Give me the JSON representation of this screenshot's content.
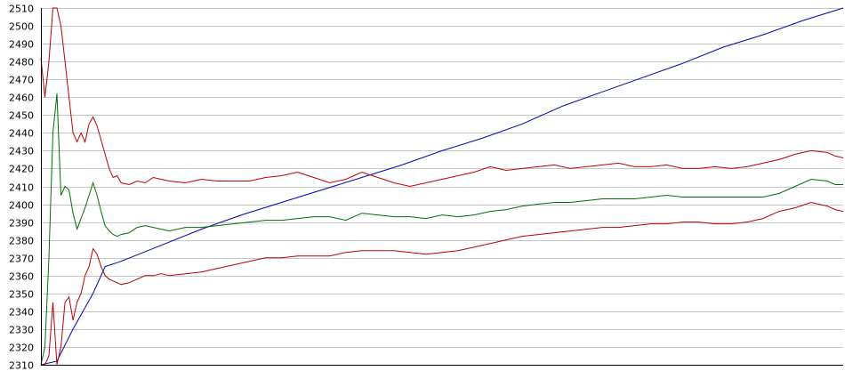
{
  "chart_data": {
    "type": "line",
    "title": "",
    "xlabel": "",
    "ylabel": "",
    "ylim": [
      2310,
      2510
    ],
    "xlim": [
      0,
      100
    ],
    "yticks": [
      "2310",
      "2320",
      "2330",
      "2340",
      "2350",
      "2360",
      "2370",
      "2380",
      "2390",
      "2400",
      "2410",
      "2420",
      "2430",
      "2440",
      "2450",
      "2460",
      "2470",
      "2480",
      "2490",
      "2500",
      "2510"
    ],
    "grid": true,
    "legend": "none",
    "series": [
      {
        "color": "#0000c0",
        "x": [
          0,
          2,
          4,
          6.5,
          8,
          10,
          15,
          20,
          25,
          30,
          35,
          40,
          45,
          50,
          55,
          60,
          65,
          70,
          75,
          80,
          85,
          90,
          95,
          100
        ],
        "y": [
          2310,
          2312,
          2330,
          2350,
          2365,
          2368,
          2377,
          2386,
          2394,
          2401,
          2408,
          2415,
          2422,
          2430,
          2437,
          2445,
          2455,
          2463,
          2471,
          2479,
          2488,
          2495,
          2503,
          2510
        ]
      },
      {
        "color": "#c00000",
        "x": [
          0,
          0.5,
          1,
          1.5,
          2,
          2.5,
          3,
          3.5,
          4,
          4.5,
          5,
          5.5,
          6,
          6.5,
          7,
          7.5,
          8,
          8.5,
          9,
          9.5,
          10,
          11,
          12,
          13,
          14,
          15,
          16,
          18,
          20,
          22,
          24,
          26,
          28,
          30,
          32,
          34,
          36,
          38,
          40,
          42,
          44,
          46,
          48,
          50,
          52,
          54,
          56,
          58,
          60,
          62,
          64,
          66,
          68,
          70,
          72,
          74,
          76,
          78,
          80,
          82,
          84,
          86,
          88,
          90,
          92,
          94,
          96,
          98,
          99,
          100
        ],
        "y": [
          2482,
          2460,
          2480,
          2510,
          2510,
          2500,
          2480,
          2460,
          2440,
          2435,
          2440,
          2435,
          2445,
          2449,
          2444,
          2436,
          2428,
          2420,
          2415,
          2416,
          2412,
          2411,
          2413,
          2412,
          2415,
          2414,
          2413,
          2412,
          2414,
          2413,
          2413,
          2413,
          2415,
          2416,
          2418,
          2415,
          2412,
          2414,
          2418,
          2415,
          2412,
          2410,
          2412,
          2414,
          2416,
          2418,
          2421,
          2419,
          2420,
          2421,
          2422,
          2420,
          2421,
          2422,
          2423,
          2421,
          2421,
          2422,
          2420,
          2420,
          2421,
          2420,
          2421,
          2423,
          2425,
          2428,
          2430,
          2429,
          2427,
          2426
        ]
      },
      {
        "color": "#007000",
        "x": [
          0,
          0.5,
          1,
          1.5,
          2,
          2.5,
          3,
          3.5,
          4,
          4.5,
          5,
          5.5,
          6,
          6.5,
          7,
          7.5,
          8,
          8.5,
          9,
          9.5,
          10,
          11,
          12,
          13,
          14,
          15,
          16,
          18,
          20,
          22,
          24,
          26,
          28,
          30,
          32,
          34,
          36,
          38,
          40,
          42,
          44,
          46,
          48,
          50,
          52,
          54,
          56,
          58,
          60,
          62,
          64,
          66,
          68,
          70,
          72,
          74,
          76,
          78,
          80,
          82,
          84,
          86,
          88,
          90,
          92,
          94,
          96,
          98,
          99,
          100
        ],
        "y": [
          2310,
          2320,
          2370,
          2440,
          2462,
          2405,
          2410,
          2408,
          2395,
          2386,
          2392,
          2398,
          2405,
          2412,
          2405,
          2396,
          2388,
          2385,
          2383,
          2382,
          2383,
          2384,
          2387,
          2388,
          2387,
          2386,
          2385,
          2387,
          2387,
          2388,
          2389,
          2390,
          2391,
          2391,
          2392,
          2393,
          2393,
          2391,
          2395,
          2394,
          2393,
          2393,
          2392,
          2394,
          2393,
          2394,
          2396,
          2397,
          2399,
          2400,
          2401,
          2401,
          2402,
          2403,
          2403,
          2403,
          2404,
          2405,
          2404,
          2404,
          2404,
          2404,
          2404,
          2404,
          2406,
          2410,
          2414,
          2413,
          2411,
          2411
        ]
      },
      {
        "color": "#c00000",
        "x": [
          0,
          0.5,
          1,
          1.5,
          2,
          2.5,
          3,
          3.5,
          4,
          4.5,
          5,
          5.5,
          6,
          6.5,
          7,
          7.5,
          8,
          8.5,
          9,
          9.5,
          10,
          11,
          12,
          13,
          14,
          15,
          16,
          18,
          20,
          22,
          24,
          26,
          28,
          30,
          32,
          34,
          36,
          38,
          40,
          42,
          44,
          46,
          48,
          50,
          52,
          54,
          56,
          58,
          60,
          62,
          64,
          66,
          68,
          70,
          72,
          74,
          76,
          78,
          80,
          82,
          84,
          86,
          88,
          90,
          92,
          94,
          96,
          98,
          99,
          100
        ],
        "y": [
          2310,
          2310,
          2315,
          2345,
          2310,
          2320,
          2345,
          2348,
          2335,
          2345,
          2350,
          2360,
          2365,
          2375,
          2372,
          2365,
          2360,
          2358,
          2357,
          2356,
          2355,
          2356,
          2358,
          2360,
          2360,
          2361,
          2360,
          2361,
          2362,
          2364,
          2366,
          2368,
          2370,
          2370,
          2371,
          2371,
          2371,
          2373,
          2374,
          2374,
          2374,
          2373,
          2372,
          2373,
          2374,
          2376,
          2378,
          2380,
          2382,
          2383,
          2384,
          2385,
          2386,
          2387,
          2387,
          2388,
          2389,
          2389,
          2390,
          2390,
          2389,
          2389,
          2390,
          2392,
          2396,
          2398,
          2401,
          2399,
          2397,
          2396
        ]
      }
    ]
  }
}
